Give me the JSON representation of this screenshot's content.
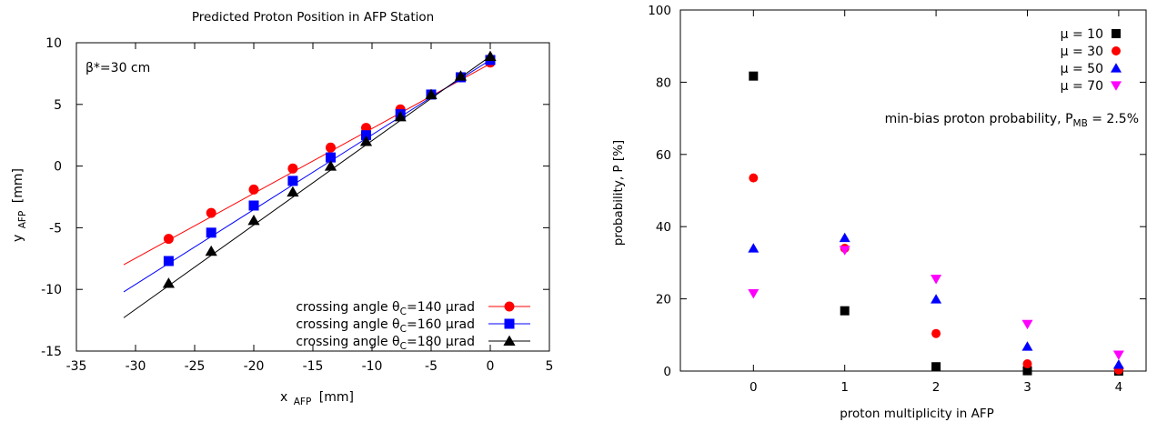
{
  "chart_data": [
    {
      "type": "scatter",
      "title": "Predicted Proton Position in AFP Station",
      "annotation": "β*=30 cm",
      "xlabel": "x",
      "xlabel_sub": "AFP",
      "xlabel_unit": "[mm]",
      "ylabel": "y",
      "ylabel_sub": "AFP",
      "ylabel_unit": "[mm]",
      "xlim": [
        -35,
        5
      ],
      "ylim": [
        -15,
        10
      ],
      "xticks": [
        -35,
        -30,
        -25,
        -20,
        -15,
        -10,
        -5,
        0,
        5
      ],
      "yticks": [
        -15,
        -10,
        -5,
        0,
        5,
        10
      ],
      "grid": false,
      "legend_position": "bottom-right",
      "series": [
        {
          "label_prefix": "crossing angle θ",
          "label_sub": "C",
          "label_suffix": "=140 μrad",
          "color": "#ff0000",
          "marker": "circle",
          "line_x": [
            -31,
            0
          ],
          "line_y": [
            -8.0,
            8.3
          ],
          "x": [
            -27.2,
            -23.6,
            -20.0,
            -16.7,
            -13.5,
            -10.5,
            -7.6,
            -5.0,
            -2.5,
            0.0
          ],
          "y": [
            -5.9,
            -3.8,
            -1.9,
            -0.2,
            1.5,
            3.1,
            4.6,
            5.8,
            7.2,
            8.4
          ]
        },
        {
          "label_prefix": "crossing angle θ",
          "label_sub": "C",
          "label_suffix": "=160 μrad",
          "color": "#0000ff",
          "marker": "square",
          "line_x": [
            -31,
            0
          ],
          "line_y": [
            -10.2,
            8.6
          ],
          "x": [
            -27.2,
            -23.6,
            -20.0,
            -16.7,
            -13.5,
            -10.5,
            -7.6,
            -5.0,
            -2.5,
            0.0
          ],
          "y": [
            -7.7,
            -5.4,
            -3.2,
            -1.2,
            0.7,
            2.5,
            4.2,
            5.8,
            7.2,
            8.6
          ]
        },
        {
          "label_prefix": "crossing angle θ",
          "label_sub": "C",
          "label_suffix": "=180 μrad",
          "color": "#000000",
          "marker": "triangle-up",
          "line_x": [
            -31,
            0
          ],
          "line_y": [
            -12.3,
            8.9
          ],
          "x": [
            -27.2,
            -23.6,
            -20.0,
            -16.7,
            -13.5,
            -10.5,
            -7.6,
            -5.0,
            -2.5,
            0.0
          ],
          "y": [
            -9.5,
            -6.9,
            -4.4,
            -2.1,
            0.0,
            2.0,
            4.0,
            5.8,
            7.3,
            8.9
          ]
        }
      ]
    },
    {
      "type": "scatter",
      "xlabel": "proton multiplicity in AFP",
      "ylabel": "probability, P [%]",
      "annotation_prefix": "min-bias proton probability, P",
      "annotation_sub": "MB",
      "annotation_suffix": " = 2.5%",
      "xlim": [
        -0.8,
        4.3
      ],
      "ylim": [
        0,
        100
      ],
      "xticks": [
        0,
        1,
        2,
        3,
        4
      ],
      "yticks": [
        0,
        20,
        40,
        60,
        80,
        100
      ],
      "grid": false,
      "legend_position": "top-right",
      "series": [
        {
          "name": "μ = 10",
          "color": "#000000",
          "marker": "square",
          "x": [
            0,
            1,
            2,
            3,
            4
          ],
          "y": [
            81.7,
            16.7,
            1.2,
            0.1,
            0.0
          ]
        },
        {
          "name": "μ = 30",
          "color": "#ff0000",
          "marker": "circle",
          "x": [
            0,
            1,
            2,
            3,
            4
          ],
          "y": [
            53.5,
            34.0,
            10.4,
            2.0,
            0.3
          ]
        },
        {
          "name": "μ = 50",
          "color": "#0000ff",
          "marker": "triangle-up",
          "x": [
            0,
            1,
            2,
            3,
            4
          ],
          "y": [
            34.0,
            36.9,
            19.9,
            6.8,
            1.8
          ]
        },
        {
          "name": "μ = 70",
          "color": "#ff00ff",
          "marker": "triangle-down",
          "x": [
            0,
            1,
            2,
            3,
            4
          ],
          "y": [
            21.5,
            33.5,
            25.5,
            13.0,
            4.5
          ]
        }
      ]
    }
  ]
}
